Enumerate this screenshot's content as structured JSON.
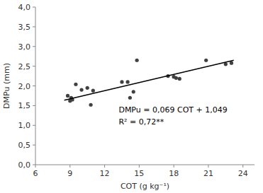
{
  "chart_data": {
    "type": "scatter",
    "xlabel": "COT (g kg⁻¹)",
    "ylabel": "DMPu (mm)",
    "annotations": [
      "DMPu = 0,069 COT + 1,049",
      "R² = 0,72**"
    ],
    "series": [
      {
        "type": "scatter",
        "color": "#404040",
        "marker": "circle",
        "x": [
          8.8,
          9.0,
          9.1,
          9.2,
          9.5,
          10.0,
          10.5,
          10.8,
          11.0,
          13.5,
          14.0,
          14.2,
          14.5,
          14.8,
          17.5,
          18.0,
          18.2,
          18.5,
          20.8,
          22.5,
          23.0
        ],
        "values": [
          1.75,
          1.62,
          1.7,
          1.65,
          2.04,
          1.9,
          1.95,
          1.52,
          1.88,
          2.1,
          2.1,
          1.7,
          1.85,
          2.65,
          2.25,
          2.23,
          2.2,
          2.18,
          2.65,
          2.55,
          2.58
        ]
      },
      {
        "type": "line",
        "color": "#000000",
        "line_style": "solid",
        "x": [
          8.5,
          23.2
        ],
        "values": [
          1.6355,
          2.6498
        ]
      }
    ],
    "xlim": [
      6,
      25
    ],
    "ylim": [
      0.0,
      4.0
    ],
    "xticks": [
      6,
      9,
      12,
      15,
      18,
      21,
      24
    ],
    "yticks": [
      {
        "value": 0.0,
        "label": "0,0"
      },
      {
        "value": 0.5,
        "label": "0,5"
      },
      {
        "value": 1.0,
        "label": "1,0"
      },
      {
        "value": 1.5,
        "label": "1,5"
      },
      {
        "value": 2.0,
        "label": "2,0"
      },
      {
        "value": 2.5,
        "label": "2,5"
      },
      {
        "value": 3.0,
        "label": "3,0"
      },
      {
        "value": 3.5,
        "label": "3,5"
      },
      {
        "value": 4.0,
        "label": "4,0"
      }
    ],
    "grid": false
  }
}
